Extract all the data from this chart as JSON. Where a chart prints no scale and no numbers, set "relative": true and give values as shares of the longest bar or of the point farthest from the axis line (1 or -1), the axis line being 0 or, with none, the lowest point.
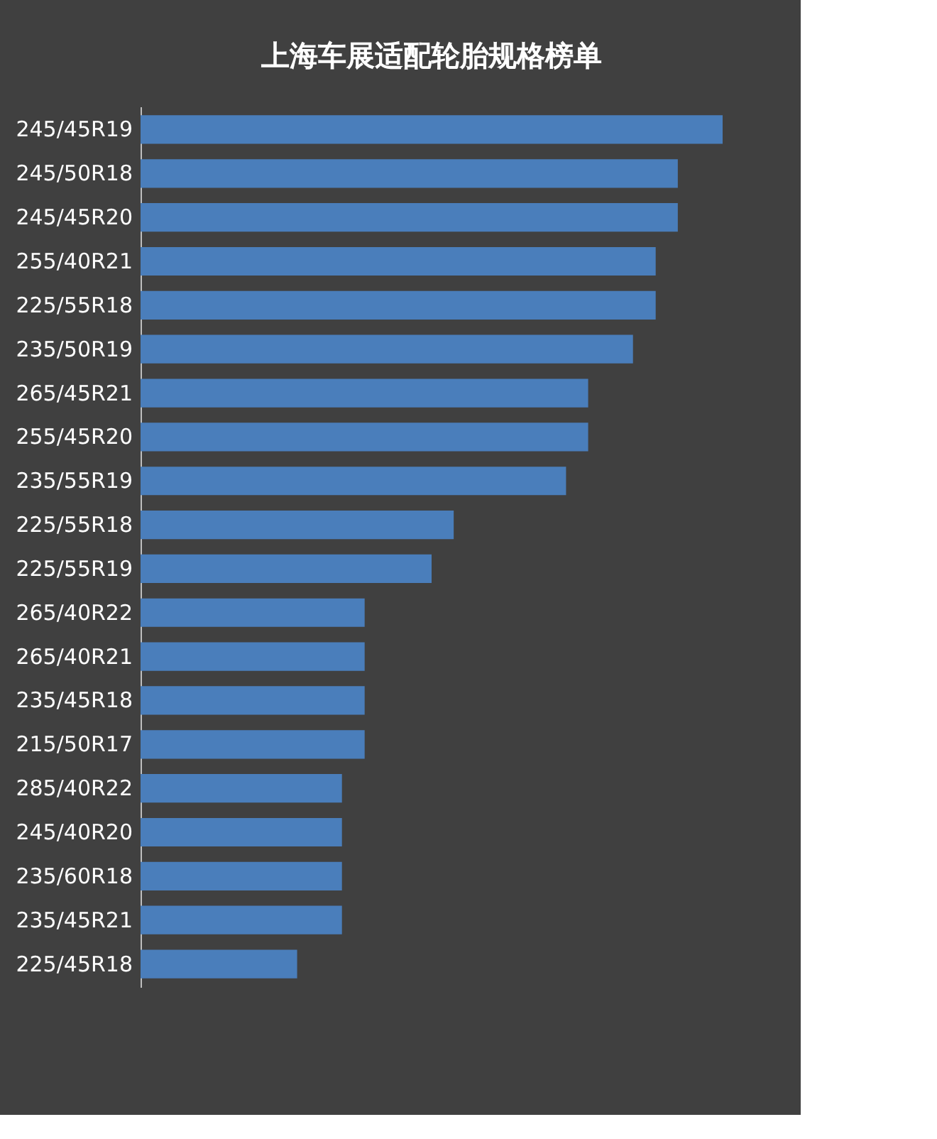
{
  "chart_data": {
    "type": "bar",
    "orientation": "horizontal",
    "relative": true,
    "title": "上海车展适配轮胎规格榜单",
    "categories": [
      "245/45R19",
      "245/50R18",
      "245/45R20",
      "255/40R21",
      "225/55R18",
      "235/50R19",
      "265/45R21",
      "255/45R20",
      "235/55R19",
      "225/55R18",
      "225/55R19",
      "265/40R22",
      "265/40R21",
      "235/45R18",
      "215/50R17",
      "285/40R22",
      "245/40R20",
      "235/60R18",
      "235/45R21",
      "225/45R18"
    ],
    "values": [
      1,
      0.923,
      0.923,
      0.885,
      0.885,
      0.846,
      0.769,
      0.769,
      0.731,
      0.538,
      0.5,
      0.385,
      0.385,
      0.385,
      0.385,
      0.346,
      0.346,
      0.346,
      0.346,
      0.269
    ],
    "color": "#4a7ebb",
    "grid": false
  }
}
